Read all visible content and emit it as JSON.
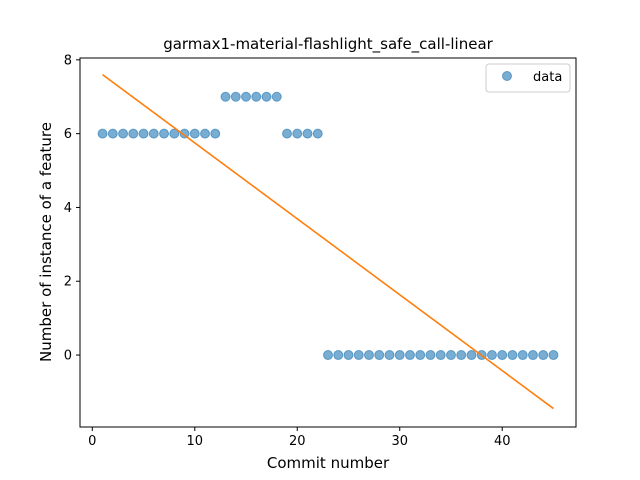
{
  "chart_data": {
    "type": "scatter",
    "title": "garmax1-material-flashlight_safe_call-linear",
    "xlabel": "Commit number",
    "ylabel": "Number of instance of a feature",
    "xlim": [
      -1.2,
      47.2
    ],
    "ylim": [
      -1.95,
      8.05
    ],
    "xticks": [
      0,
      10,
      20,
      30,
      40
    ],
    "yticks": [
      0,
      2,
      4,
      6,
      8
    ],
    "grid": false,
    "legend_position": "top-right",
    "series": [
      {
        "name": "data",
        "kind": "points",
        "color": "#1f77b4",
        "x": [
          1,
          2,
          3,
          4,
          5,
          6,
          7,
          8,
          9,
          10,
          11,
          12,
          13,
          14,
          15,
          16,
          17,
          18,
          19,
          20,
          21,
          22,
          23,
          24,
          25,
          26,
          27,
          28,
          29,
          30,
          31,
          32,
          33,
          34,
          35,
          36,
          37,
          38,
          39,
          40,
          41,
          42,
          43,
          44,
          45
        ],
        "y": [
          6,
          6,
          6,
          6,
          6,
          6,
          6,
          6,
          6,
          6,
          6,
          6,
          7,
          7,
          7,
          7,
          7,
          7,
          6,
          6,
          6,
          6,
          0,
          0,
          0,
          0,
          0,
          0,
          0,
          0,
          0,
          0,
          0,
          0,
          0,
          0,
          0,
          0,
          0,
          0,
          0,
          0,
          0,
          0,
          0
        ]
      },
      {
        "kind": "fit-line",
        "color": "#ff7f0e",
        "x": [
          1,
          45
        ],
        "y": [
          7.6,
          -1.45
        ]
      }
    ]
  }
}
